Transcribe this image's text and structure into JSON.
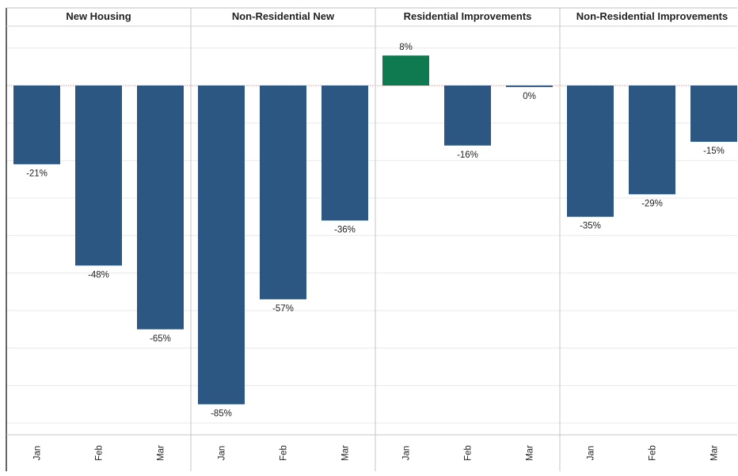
{
  "chart_data": {
    "type": "bar",
    "value_format": "percent",
    "months": [
      "Jan",
      "Feb",
      "Mar"
    ],
    "ylim": [
      -93,
      13
    ],
    "grid": true,
    "legend": "none",
    "colors": {
      "negative": "#2b5782",
      "positive": "#0f7a50",
      "gridline": "#e9e9e9",
      "divider": "#c4c4c4",
      "zero_line": "#e58f8f"
    },
    "panels": [
      {
        "title": "New Housing",
        "labels": [
          "-21%",
          "-48%",
          "-65%"
        ],
        "values": [
          -21,
          -48,
          -65
        ]
      },
      {
        "title": "Non-Residential New",
        "labels": [
          "-85%",
          "-57%",
          "-36%"
        ],
        "values": [
          -85,
          -57,
          -36
        ]
      },
      {
        "title": "Residential Improvements",
        "labels": [
          "8%",
          "-16%",
          "0%"
        ],
        "values": [
          8,
          -16,
          -0.4
        ]
      },
      {
        "title": "Non-Residential Improvements",
        "labels": [
          "-35%",
          "-29%",
          "-15%"
        ],
        "values": [
          -35,
          -29,
          -15
        ]
      }
    ]
  }
}
